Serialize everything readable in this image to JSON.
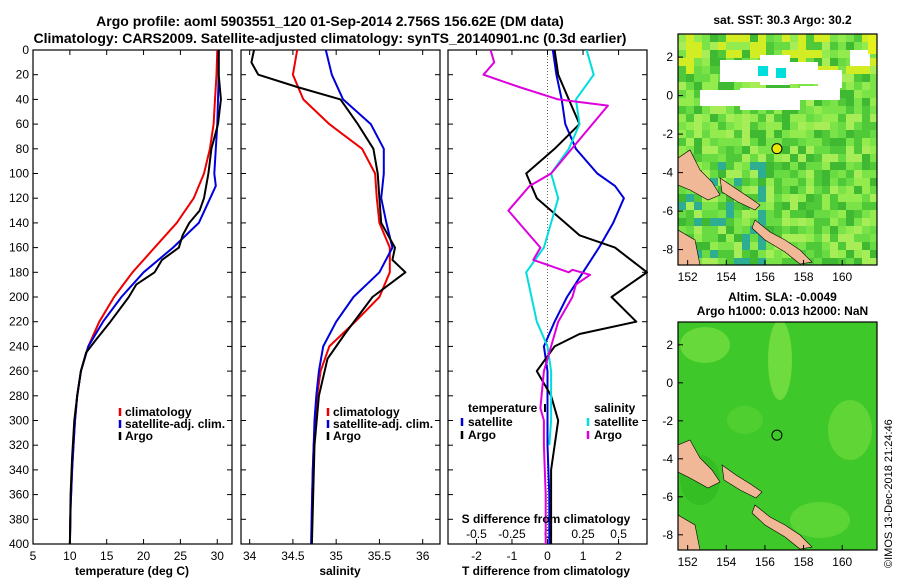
{
  "header": {
    "line1": "Argo profile: aoml 5903551_120 01-Sep-2014 2.756S 156.62E (DM data)",
    "line2": "Climatology: CARS2009. Satellite-adjusted climatology: synTS_20140901.nc (0.3d earlier)"
  },
  "credit": "©IMOS 13-Dec-2018 21:24:46",
  "colors": {
    "clim": "#ee0000",
    "sat": "#0000dd",
    "argo": "#000000",
    "tsat": "#0000dd",
    "ssat": "#00dddd",
    "sargo": "#dd00dd"
  },
  "chart_data": [
    {
      "type": "line",
      "name": "temperature",
      "xlabel": "temperature (deg C)",
      "ylim": [
        0,
        400
      ],
      "xlim": [
        5,
        32
      ],
      "xticks": [
        5,
        10,
        15,
        20,
        25,
        30
      ],
      "legend": {
        "placement": "lower-right",
        "entries": [
          "climatology",
          "satellite-adj. clim.",
          "Argo"
        ]
      },
      "series": [
        {
          "name": "climatology",
          "x": [
            30,
            29.9,
            29.7,
            29.5,
            29,
            28.2,
            26.8,
            24.5,
            21.5,
            18.5,
            16,
            14,
            12.5,
            11.5,
            11,
            10.7,
            10.5,
            10.3,
            10.1,
            10
          ],
          "y": [
            0,
            20,
            40,
            60,
            80,
            100,
            120,
            140,
            160,
            180,
            200,
            220,
            240,
            260,
            280,
            300,
            320,
            340,
            370,
            400
          ]
        },
        {
          "name": "satellite-adj. clim.",
          "x": [
            30.2,
            30.2,
            30.1,
            30,
            29.8,
            29.6,
            29.8,
            27.5,
            24,
            20,
            17,
            14.5,
            12.5,
            11.5,
            11,
            10.7,
            10.5,
            10.3,
            10.1,
            10
          ],
          "y": [
            0,
            20,
            40,
            60,
            80,
            100,
            110,
            140,
            160,
            180,
            200,
            220,
            240,
            260,
            280,
            300,
            320,
            340,
            370,
            400
          ]
        },
        {
          "name": "Argo",
          "x": [
            30.2,
            30.2,
            30.5,
            30.1,
            29.2,
            28.8,
            28.2,
            27.6,
            26.2,
            25.3,
            24.8,
            22.5,
            21.5,
            19,
            18,
            15.5,
            13.5,
            12.2,
            11.5,
            11,
            10.6,
            10.3,
            10.1,
            10
          ],
          "y": [
            0,
            20,
            40,
            60,
            80,
            100,
            120,
            130,
            140,
            150,
            160,
            170,
            180,
            190,
            200,
            220,
            235,
            245,
            260,
            280,
            300,
            330,
            360,
            400
          ]
        }
      ]
    },
    {
      "type": "line",
      "name": "salinity",
      "xlabel": "salinity",
      "ylim": [
        0,
        400
      ],
      "xlim": [
        33.9,
        36.2
      ],
      "xticks": [
        34,
        34.5,
        35,
        35.5,
        36
      ],
      "legend": {
        "placement": "lower-right",
        "entries": [
          "climatology",
          "satellite-adj. clim.",
          "Argo"
        ]
      },
      "series": [
        {
          "name": "climatology",
          "x": [
            34.55,
            34.5,
            34.62,
            34.92,
            35.3,
            35.45,
            35.47,
            35.5,
            35.62,
            35.62,
            35.5,
            35.22,
            34.92,
            34.82,
            34.78,
            34.76,
            34.74,
            34.73,
            34.72,
            34.72
          ],
          "y": [
            0,
            20,
            40,
            60,
            80,
            100,
            120,
            140,
            160,
            180,
            200,
            220,
            240,
            260,
            280,
            300,
            320,
            340,
            370,
            400
          ]
        },
        {
          "name": "satellite-adj. clim.",
          "x": [
            34.88,
            34.95,
            35.08,
            35.4,
            35.55,
            35.55,
            35.52,
            35.58,
            35.65,
            35.5,
            35.2,
            35,
            34.85,
            34.8,
            34.77,
            34.75,
            34.74,
            34.73,
            34.72,
            34.71
          ],
          "y": [
            0,
            20,
            40,
            60,
            80,
            100,
            120,
            140,
            160,
            180,
            200,
            220,
            240,
            260,
            280,
            300,
            320,
            340,
            370,
            400
          ]
        },
        {
          "name": "Argo",
          "x": [
            34.05,
            34.02,
            34.1,
            34.55,
            35.05,
            35.25,
            35.43,
            35.48,
            35.5,
            35.52,
            35.6,
            35.68,
            35.65,
            35.8,
            35.42,
            35.1,
            34.9,
            34.8,
            34.75,
            34.72
          ],
          "y": [
            0,
            10,
            20,
            30,
            40,
            60,
            80,
            100,
            120,
            140,
            150,
            160,
            170,
            180,
            200,
            230,
            250,
            280,
            320,
            400
          ]
        }
      ]
    },
    {
      "type": "line",
      "name": "difference",
      "xlabel": "T difference from climatology",
      "xlabel2": "S difference from climatology",
      "ylim": [
        0,
        400
      ],
      "xlim": [
        -2.8,
        2.8
      ],
      "xticks": [
        -2,
        -1,
        0,
        1,
        2
      ],
      "xticks2": [
        "-0.5",
        "-0.25",
        "0",
        "0.25",
        "0.5"
      ],
      "legend": {
        "placement": "lower-center",
        "temperature_title": "temperature",
        "salinity_title": "salinity",
        "entries": [
          "satellite",
          "Argo",
          "satellite",
          "Argo"
        ]
      },
      "series": [
        {
          "name": "T satellite",
          "x": [
            0.15,
            0.25,
            0.4,
            0.5,
            0.8,
            1.4,
            1.9,
            2.15,
            1.85,
            1.45,
            1,
            0.55,
            0.2,
            -0.1,
            0,
            0,
            0,
            0.05,
            0.05
          ],
          "y": [
            0,
            20,
            40,
            60,
            80,
            100,
            110,
            120,
            140,
            160,
            180,
            200,
            220,
            240,
            260,
            300,
            320,
            360,
            400
          ]
        },
        {
          "name": "T Argo",
          "x": [
            0.2,
            0.3,
            0.6,
            0.9,
            0.2,
            -0.6,
            -0.3,
            0.5,
            0.9,
            1.9,
            2.8,
            1.8,
            2.5,
            0.9,
            0.2,
            -0.3,
            0.1,
            0.3,
            0.1,
            0.1
          ],
          "y": [
            0,
            20,
            40,
            60,
            80,
            100,
            120,
            140,
            150,
            160,
            180,
            200,
            220,
            230,
            240,
            260,
            280,
            300,
            340,
            400
          ]
        },
        {
          "name": "S satellite",
          "x": [
            1.1,
            1.3,
            0.8,
            0.9,
            0.6,
            0.1,
            0.3,
            0.1,
            -0.1,
            -0.6,
            -0.3,
            0,
            0.1,
            0.1,
            0.05
          ],
          "y": [
            0,
            20,
            40,
            60,
            80,
            100,
            120,
            140,
            160,
            180,
            220,
            240,
            260,
            300,
            320
          ]
        },
        {
          "name": "S Argo",
          "x": [
            -1.6,
            -1.5,
            -1.8,
            -0.8,
            0.3,
            1.7,
            0.1,
            -0.5,
            -0.8,
            -1.1,
            -0.2,
            -0.4,
            0.6,
            0.7,
            1.2,
            0.8,
            0.7,
            0.3,
            0.1,
            -0.1,
            -0.2,
            -0.1,
            -0.1,
            -0.05,
            -0.05
          ],
          "y": [
            0,
            10,
            20,
            30,
            40,
            45,
            100,
            110,
            120,
            130,
            160,
            170,
            180,
            178,
            182,
            190,
            200,
            220,
            240,
            260,
            290,
            300,
            320,
            360,
            400
          ]
        }
      ]
    },
    {
      "type": "heatmap",
      "name": "sst-map",
      "title": "sat. SST: 30.3 Argo: 30.2",
      "xlim": [
        151.5,
        161.8
      ],
      "ylim": [
        -8.8,
        3.2
      ],
      "xticks": [
        152,
        154,
        156,
        158,
        160
      ],
      "yticks": [
        2,
        0,
        -2,
        -4,
        -6,
        -8
      ],
      "argo_position": {
        "lon": 156.62,
        "lat": -2.756
      }
    },
    {
      "type": "heatmap",
      "name": "sla-map",
      "title_line1": "Altim. SLA: -0.0049",
      "title_line2": "Argo h1000: 0.013 h2000: NaN",
      "xlim": [
        151.5,
        161.8
      ],
      "ylim": [
        -8.8,
        3.2
      ],
      "xticks": [
        152,
        154,
        156,
        158,
        160
      ],
      "yticks": [
        2,
        0,
        -2,
        -4,
        -6,
        -8
      ],
      "argo_position": {
        "lon": 156.62,
        "lat": -2.756
      }
    }
  ]
}
